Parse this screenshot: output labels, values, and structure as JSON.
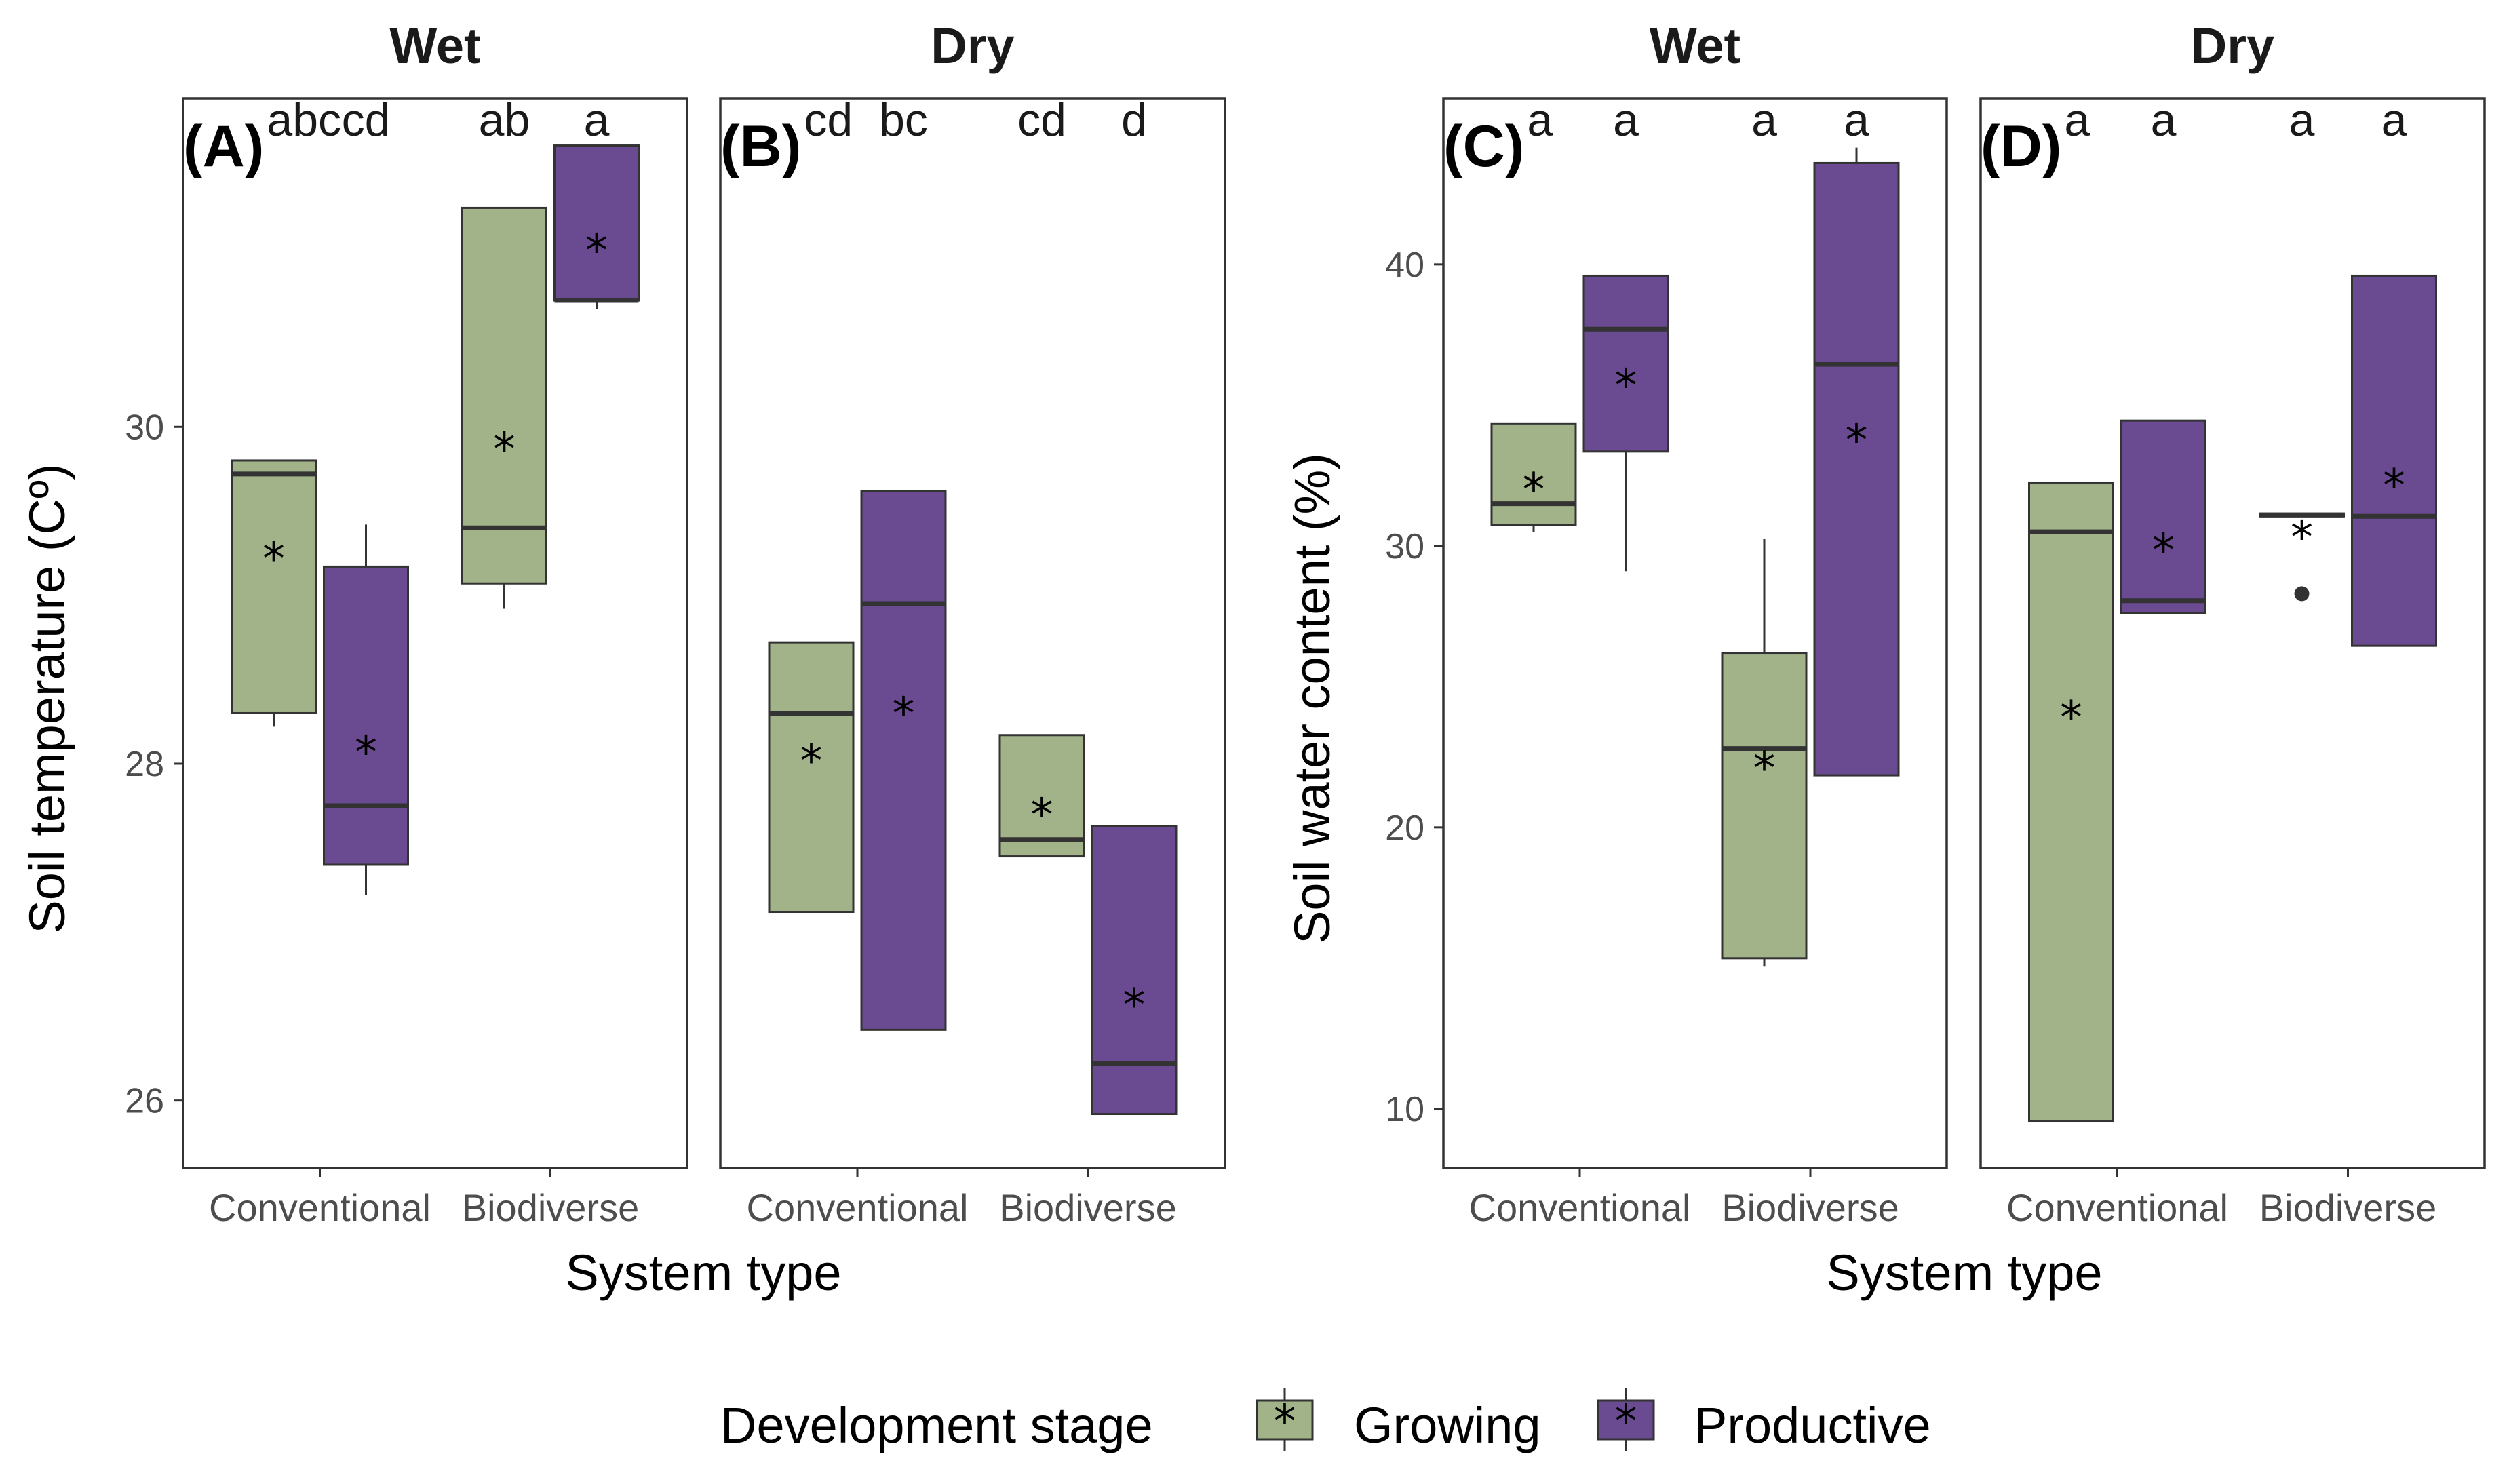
{
  "colors": {
    "Growing": "#a2b38a",
    "Productive": "#6a4a91",
    "outline": "#333333",
    "median": "#333333"
  },
  "legend": {
    "title": "Development stage",
    "labels": [
      "Growing",
      "Productive"
    ]
  },
  "chart_data": [
    {
      "type": "box",
      "panel": "A",
      "panel_label": "(A)",
      "strip_title": "Wet",
      "ylabel": "Soil temperature (Cº)",
      "xlabel": "System type",
      "ylim": [
        25.6,
        31.95
      ],
      "yticks": [
        26,
        28,
        30
      ],
      "categories": [
        "Conventional",
        "Biodiverse"
      ],
      "series": [
        "Growing",
        "Productive"
      ],
      "boxes": [
        {
          "category": "Conventional",
          "stage": "Growing",
          "q1": 28.3,
          "median": 29.72,
          "q3": 29.8,
          "whisker_low": 28.22,
          "whisker_high": 29.8,
          "mean": 29.25,
          "letter": "abc"
        },
        {
          "category": "Conventional",
          "stage": "Productive",
          "q1": 27.4,
          "median": 27.75,
          "q3": 29.17,
          "whisker_low": 27.22,
          "whisker_high": 29.42,
          "mean": 28.1,
          "letter": "cd"
        },
        {
          "category": "Biodiverse",
          "stage": "Growing",
          "q1": 29.07,
          "median": 29.4,
          "q3": 31.3,
          "whisker_low": 28.92,
          "whisker_high": 31.3,
          "mean": 29.9,
          "letter": "ab"
        },
        {
          "category": "Biodiverse",
          "stage": "Productive",
          "q1": 30.75,
          "median": 30.75,
          "q3": 31.67,
          "whisker_low": 30.7,
          "whisker_high": 31.67,
          "mean": 31.08,
          "letter": "a"
        }
      ]
    },
    {
      "type": "box",
      "panel": "B",
      "panel_label": "(B)",
      "strip_title": "Dry",
      "xlabel": "System type",
      "ylim": [
        25.6,
        31.95
      ],
      "categories": [
        "Conventional",
        "Biodiverse"
      ],
      "series": [
        "Growing",
        "Productive"
      ],
      "boxes": [
        {
          "category": "Conventional",
          "stage": "Growing",
          "q1": 27.12,
          "median": 28.3,
          "q3": 28.72,
          "whisker_low": 27.12,
          "whisker_high": 28.72,
          "mean": 28.05,
          "letter": "cd"
        },
        {
          "category": "Conventional",
          "stage": "Productive",
          "q1": 26.42,
          "median": 28.95,
          "q3": 29.62,
          "whisker_low": 26.42,
          "whisker_high": 29.62,
          "mean": 28.33,
          "letter": "bc"
        },
        {
          "category": "Biodiverse",
          "stage": "Growing",
          "q1": 27.45,
          "median": 27.55,
          "q3": 28.17,
          "whisker_low": 27.45,
          "whisker_high": 28.17,
          "mean": 27.73,
          "letter": "cd"
        },
        {
          "category": "Biodiverse",
          "stage": "Productive",
          "q1": 25.92,
          "median": 26.22,
          "q3": 27.63,
          "whisker_low": 25.92,
          "whisker_high": 27.63,
          "mean": 26.6,
          "letter": "d"
        }
      ]
    },
    {
      "type": "box",
      "panel": "C",
      "panel_label": "(C)",
      "strip_title": "Wet",
      "ylabel": "Soil water content (%)",
      "xlabel": "System type",
      "ylim": [
        7.9,
        45.9
      ],
      "yticks": [
        10,
        20,
        30,
        40
      ],
      "categories": [
        "Conventional",
        "Biodiverse"
      ],
      "series": [
        "Growing",
        "Productive"
      ],
      "boxes": [
        {
          "category": "Conventional",
          "stage": "Growing",
          "q1": 30.75,
          "median": 31.5,
          "q3": 34.35,
          "whisker_low": 30.5,
          "whisker_high": 34.35,
          "mean": 32.2,
          "letter": "a"
        },
        {
          "category": "Conventional",
          "stage": "Productive",
          "q1": 33.35,
          "median": 37.7,
          "q3": 39.6,
          "whisker_low": 29.1,
          "whisker_high": 39.6,
          "mean": 35.9,
          "letter": "a"
        },
        {
          "category": "Biodiverse",
          "stage": "Growing",
          "q1": 15.35,
          "median": 22.8,
          "q3": 26.2,
          "whisker_low": 15.05,
          "whisker_high": 30.25,
          "mean": 22.3,
          "letter": "a"
        },
        {
          "category": "Biodiverse",
          "stage": "Productive",
          "q1": 21.85,
          "median": 36.45,
          "q3": 43.6,
          "whisker_low": 21.85,
          "whisker_high": 44.15,
          "mean": 33.95,
          "letter": "a"
        }
      ]
    },
    {
      "type": "box",
      "panel": "D",
      "panel_label": "(D)",
      "strip_title": "Dry",
      "xlabel": "System type",
      "ylim": [
        7.9,
        45.9
      ],
      "categories": [
        "Conventional",
        "Biodiverse"
      ],
      "series": [
        "Growing",
        "Productive"
      ],
      "boxes": [
        {
          "category": "Conventional",
          "stage": "Growing",
          "q1": 9.55,
          "median": 30.5,
          "q3": 32.25,
          "whisker_low": 9.55,
          "whisker_high": 32.25,
          "mean": 24.1,
          "letter": "a"
        },
        {
          "category": "Conventional",
          "stage": "Productive",
          "q1": 27.6,
          "median": 28.05,
          "q3": 34.45,
          "whisker_low": 27.6,
          "whisker_high": 34.45,
          "mean": 30.05,
          "letter": "a"
        },
        {
          "category": "Biodiverse",
          "stage": "Growing",
          "q1": 31.05,
          "median": 31.1,
          "q3": 31.15,
          "whisker_low": 31.05,
          "whisker_high": 31.15,
          "mean": 30.5,
          "outliers": [
            28.3
          ],
          "letter": "a"
        },
        {
          "category": "Biodiverse",
          "stage": "Productive",
          "q1": 26.45,
          "median": 31.05,
          "q3": 39.6,
          "whisker_low": 26.45,
          "whisker_high": 39.6,
          "mean": 32.35,
          "letter": "a"
        }
      ]
    }
  ]
}
